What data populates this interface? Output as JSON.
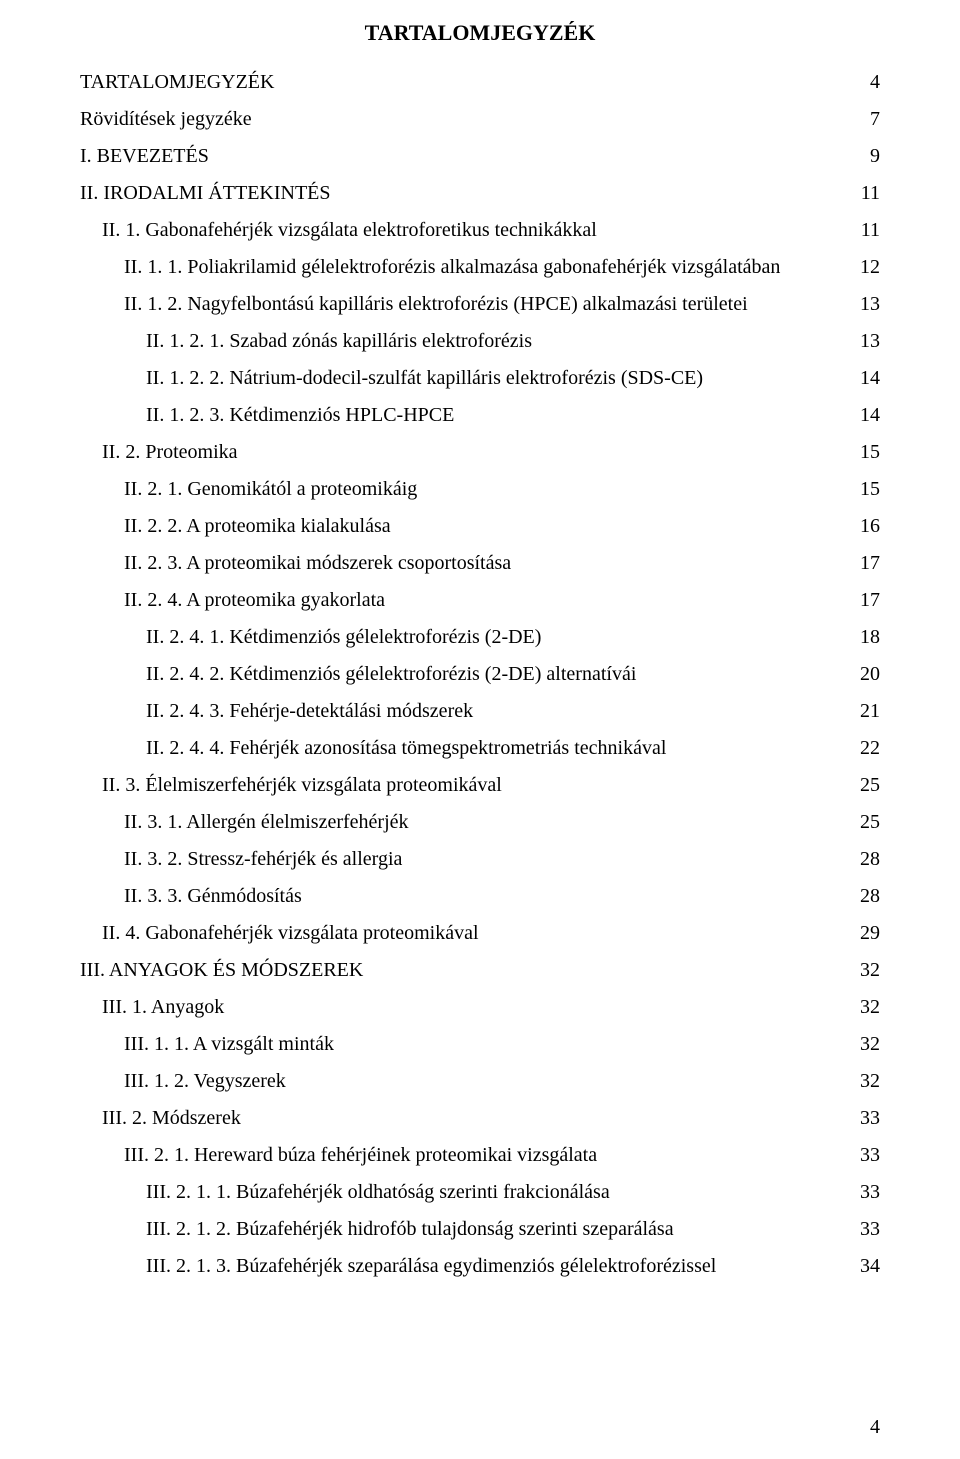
{
  "title": "TARTALOMJEGYZÉK",
  "page_number": "4",
  "style": {
    "font_family": "Times New Roman",
    "title_fontsize_pt": 16,
    "body_fontsize_pt": 15,
    "text_color": "#000000",
    "background_color": "#ffffff",
    "leader_char": "."
  },
  "entries": [
    {
      "label": "TARTALOMJEGYZÉK",
      "page": "4",
      "indent": 0
    },
    {
      "label": "Rövidítések jegyzéke",
      "page": "7",
      "indent": 0
    },
    {
      "label": "I. BEVEZETÉS",
      "page": "9",
      "indent": 0
    },
    {
      "label": "II. IRODALMI ÁTTEKINTÉS",
      "page": "11",
      "indent": 0
    },
    {
      "label": "II. 1. Gabonafehérjék vizsgálata elektroforetikus technikákkal",
      "page": "11",
      "indent": 1
    },
    {
      "label": "II. 1. 1. Poliakrilamid gélelektroforézis alkalmazása gabonafehérjék vizsgálatában",
      "page": "12",
      "indent": 2
    },
    {
      "label": "II. 1. 2. Nagyfelbontású kapilláris elektroforézis (HPCE) alkalmazási területei",
      "page": "13",
      "indent": 2
    },
    {
      "label": "II. 1. 2. 1. Szabad zónás kapilláris elektroforézis",
      "page": "13",
      "indent": 3
    },
    {
      "label": "II. 1. 2. 2. Nátrium-dodecil-szulfát kapilláris elektroforézis (SDS-CE)",
      "page": "14",
      "indent": 3
    },
    {
      "label": "II. 1. 2. 3. Kétdimenziós HPLC-HPCE",
      "page": "14",
      "indent": 3
    },
    {
      "label": "II. 2. Proteomika",
      "page": "15",
      "indent": 1
    },
    {
      "label": "II. 2. 1. Genomikától a proteomikáig",
      "page": "15",
      "indent": 2
    },
    {
      "label": "II. 2. 2. A proteomika kialakulása",
      "page": "16",
      "indent": 2
    },
    {
      "label": "II. 2. 3. A proteomikai módszerek csoportosítása",
      "page": "17",
      "indent": 2
    },
    {
      "label": "II. 2. 4. A proteomika gyakorlata",
      "page": "17",
      "indent": 2
    },
    {
      "label": "II. 2. 4. 1. Kétdimenziós gélelektroforézis (2-DE)",
      "page": "18",
      "indent": 3
    },
    {
      "label": "II. 2. 4. 2. Kétdimenziós gélelektroforézis (2-DE) alternatívái",
      "page": "20",
      "indent": 3
    },
    {
      "label": "II. 2. 4. 3. Fehérje-detektálási módszerek",
      "page": "21",
      "indent": 3
    },
    {
      "label": "II. 2. 4. 4. Fehérjék azonosítása tömegspektrometriás technikával",
      "page": "22",
      "indent": 3
    },
    {
      "label": "II. 3. Élelmiszerfehérjék vizsgálata proteomikával",
      "page": "25",
      "indent": 1
    },
    {
      "label": "II. 3. 1. Allergén élelmiszerfehérjék",
      "page": "25",
      "indent": 2
    },
    {
      "label": "II. 3. 2. Stressz-fehérjék és allergia",
      "page": "28",
      "indent": 2
    },
    {
      "label": "II. 3. 3. Génmódosítás",
      "page": "28",
      "indent": 2
    },
    {
      "label": "II. 4. Gabonafehérjék vizsgálata proteomikával",
      "page": "29",
      "indent": 1
    },
    {
      "label": "III. ANYAGOK ÉS MÓDSZEREK",
      "page": "32",
      "indent": 0
    },
    {
      "label": "III. 1. Anyagok",
      "page": "32",
      "indent": 1
    },
    {
      "label": "III. 1. 1. A vizsgált minták",
      "page": "32",
      "indent": 2
    },
    {
      "label": "III. 1. 2. Vegyszerek",
      "page": "32",
      "indent": 2
    },
    {
      "label": "III. 2. Módszerek",
      "page": "33",
      "indent": 1
    },
    {
      "label": "III. 2. 1. Hereward búza fehérjéinek proteomikai vizsgálata",
      "page": "33",
      "indent": 2
    },
    {
      "label": "III. 2. 1. 1. Búzafehérjék oldhatóság szerinti frakcionálása",
      "page": "33",
      "indent": 3
    },
    {
      "label": "III. 2. 1. 2. Búzafehérjék hidrofób tulajdonság szerinti szeparálása",
      "page": "33",
      "indent": 3
    },
    {
      "label": "III. 2. 1. 3. Búzafehérjék szeparálása egydimenziós gélelektroforézissel",
      "page": "34",
      "indent": 3
    }
  ]
}
